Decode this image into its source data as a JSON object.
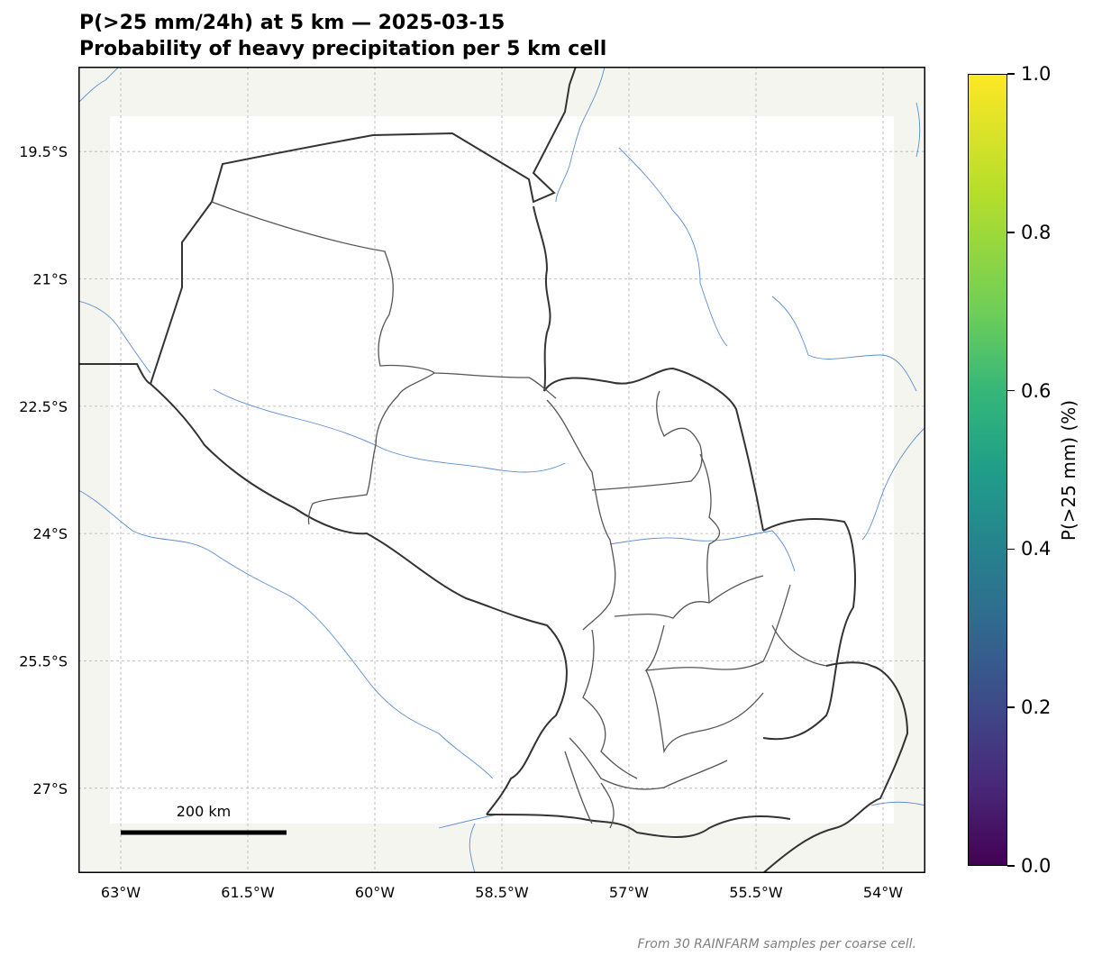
{
  "title": {
    "line1": "P(>25 mm/24h) at 5 km — 2025-03-15",
    "line2": "Probability of heavy precipitation per 5 km cell"
  },
  "map": {
    "lon_range": [
      -63.5,
      -53.5
    ],
    "lat_range": [
      -28.0,
      -18.5
    ],
    "lon_ticks": [
      {
        "value": -63.0,
        "label": "63°W"
      },
      {
        "value": -61.5,
        "label": "61.5°W"
      },
      {
        "value": -60.0,
        "label": "60°W"
      },
      {
        "value": -58.5,
        "label": "58.5°W"
      },
      {
        "value": -57.0,
        "label": "57°W"
      },
      {
        "value": -55.5,
        "label": "55.5°W"
      },
      {
        "value": -54.0,
        "label": "54°W"
      }
    ],
    "lat_ticks": [
      {
        "value": -19.5,
        "label": "19.5°S"
      },
      {
        "value": -21.0,
        "label": "21°S"
      },
      {
        "value": -22.5,
        "label": "22.5°S"
      },
      {
        "value": -24.0,
        "label": "24°S"
      },
      {
        "value": -25.5,
        "label": "25.5°S"
      },
      {
        "value": -27.0,
        "label": "27°S"
      }
    ],
    "scale_bar_label": "200 km",
    "colors": {
      "land_background": "#f5f5f0",
      "river": "#5b8dd0",
      "border": "#333333",
      "gridline": "#b0b0b0"
    }
  },
  "colorbar": {
    "label": "P(>25 mm) (%)",
    "ticks": [
      "0.0",
      "0.2",
      "0.4",
      "0.6",
      "0.8",
      "1.0"
    ],
    "colormap": "viridis"
  },
  "footnote": "From 30 RAINFARM samples per coarse cell."
}
